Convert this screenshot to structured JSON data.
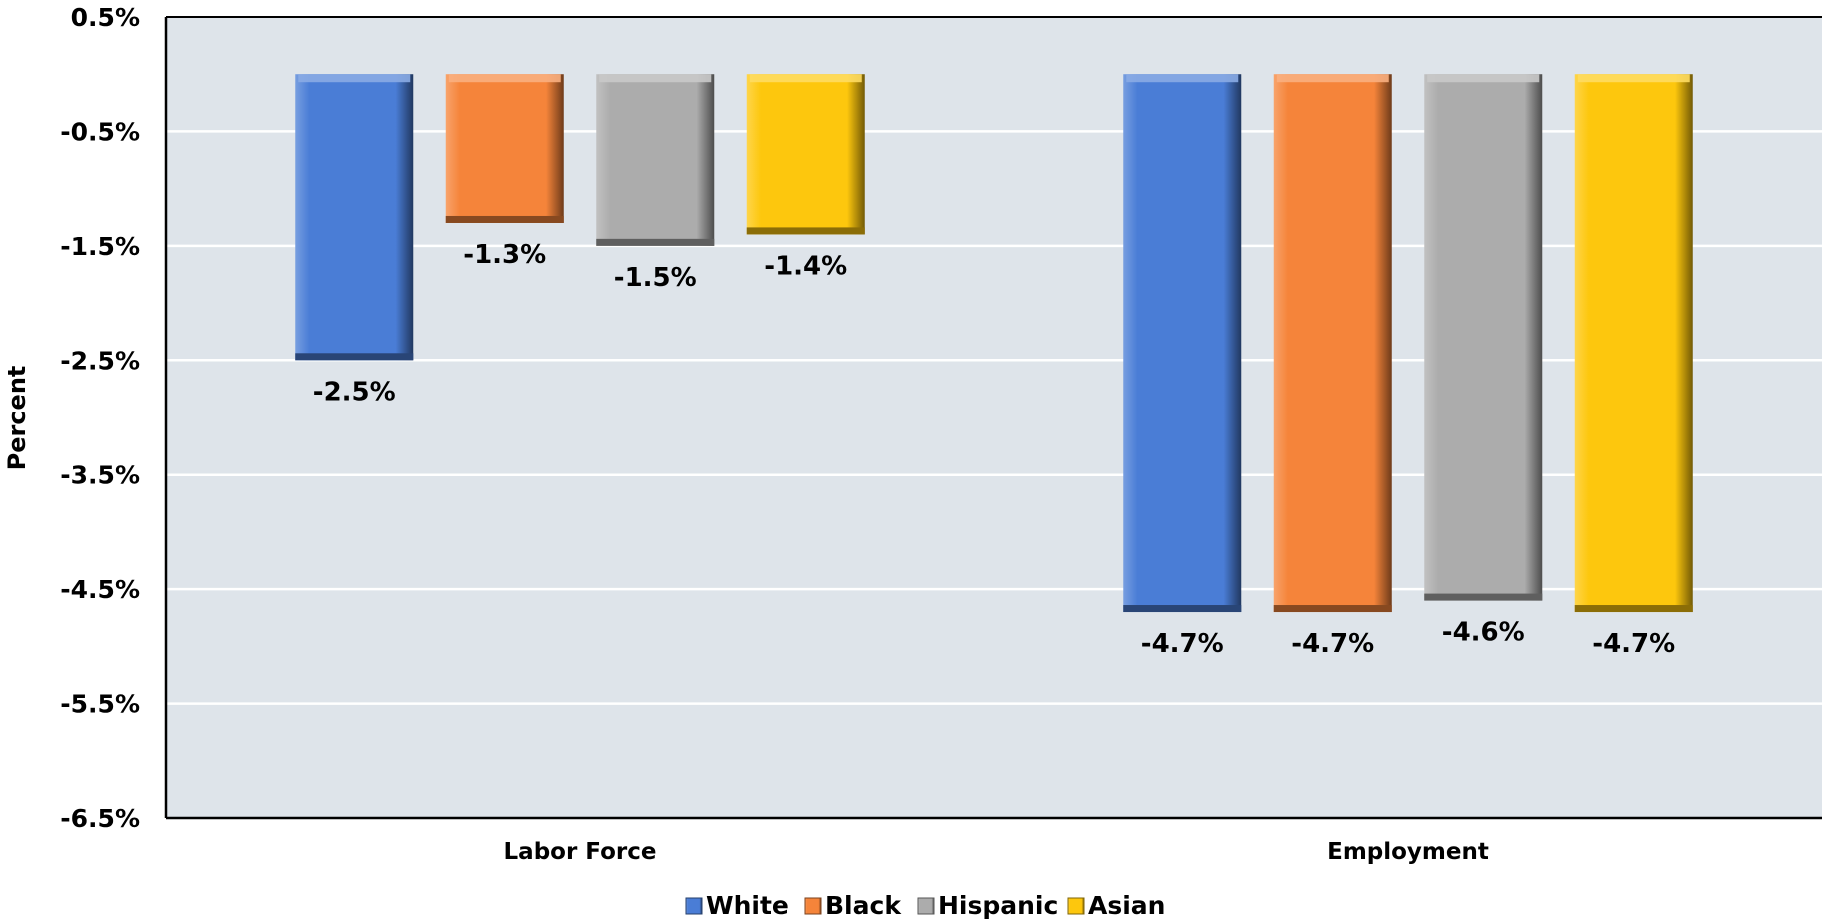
{
  "chart_data": {
    "type": "bar",
    "title": "",
    "xlabel": "",
    "ylabel": "Percent",
    "categories": [
      "Labor Force",
      "Employment"
    ],
    "series": [
      {
        "name": "White",
        "values": [
          -2.5,
          -4.7
        ],
        "labels": [
          "-2.5%",
          "-4.7%"
        ],
        "color": "#4a7dd6"
      },
      {
        "name": "Black",
        "values": [
          -1.3,
          -4.7
        ],
        "labels": [
          "-1.3%",
          "-4.7%"
        ],
        "color": "#f5843a"
      },
      {
        "name": "Hispanic",
        "values": [
          -1.5,
          -4.6
        ],
        "labels": [
          "-1.5%",
          "-4.6%"
        ],
        "color": "#acacac"
      },
      {
        "name": "Asian",
        "values": [
          -1.4,
          -4.7
        ],
        "labels": [
          "-1.4%",
          "-4.7%"
        ],
        "color": "#fdc70d"
      }
    ],
    "ylim": [
      -6.5,
      0.5
    ],
    "yticks": [
      "0.5%",
      "-0.5%",
      "-1.5%",
      "-2.5%",
      "-3.5%",
      "-4.5%",
      "-5.5%",
      "-6.5%"
    ],
    "ytick_values": [
      0.5,
      -0.5,
      -1.5,
      -2.5,
      -3.5,
      -4.5,
      -5.5,
      -6.5
    ],
    "grid": true,
    "legend_position": "bottom",
    "plot_background": "#dee4ea"
  }
}
